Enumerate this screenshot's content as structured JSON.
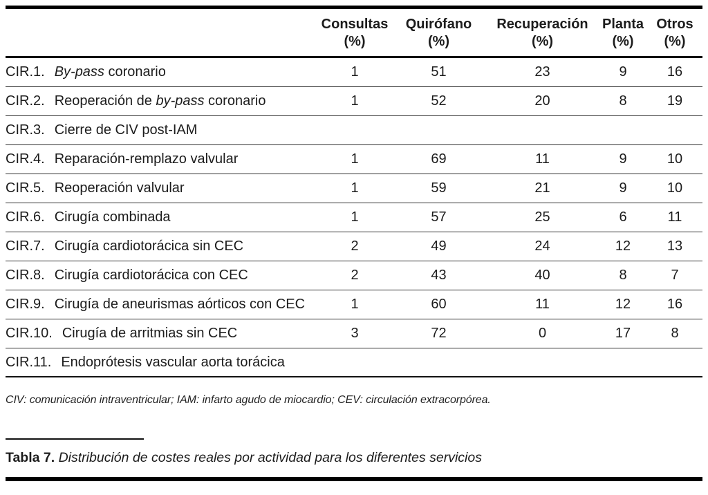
{
  "table": {
    "columns": [
      {
        "label": "Consultas",
        "unit": "(%)"
      },
      {
        "label": "Quirófano",
        "unit": "(%)"
      },
      {
        "label": "Recuperación",
        "unit": "(%)"
      },
      {
        "label": "Planta",
        "unit": "(%)"
      },
      {
        "label": "Otros",
        "unit": "(%)"
      }
    ],
    "rows": [
      {
        "code": "CIR.1.",
        "label_parts": [
          {
            "text": "By-pass",
            "italic": true
          },
          {
            "text": " coronario",
            "italic": false
          }
        ],
        "values": [
          "1",
          "51",
          "23",
          "9",
          "16"
        ]
      },
      {
        "code": "CIR.2.",
        "label_parts": [
          {
            "text": "Reoperación de ",
            "italic": false
          },
          {
            "text": "by-pass",
            "italic": true
          },
          {
            "text": " coronario",
            "italic": false
          }
        ],
        "values": [
          "1",
          "52",
          "20",
          "8",
          "19"
        ]
      },
      {
        "code": "CIR.3.",
        "label_parts": [
          {
            "text": "Cierre de CIV post-IAM",
            "italic": false
          }
        ],
        "values": [
          "",
          "",
          "",
          "",
          ""
        ]
      },
      {
        "code": "CIR.4.",
        "label_parts": [
          {
            "text": "Reparación-remplazo valvular",
            "italic": false
          }
        ],
        "values": [
          "1",
          "69",
          "11",
          "9",
          "10"
        ]
      },
      {
        "code": "CIR.5.",
        "label_parts": [
          {
            "text": "Reoperación valvular",
            "italic": false
          }
        ],
        "values": [
          "1",
          "59",
          "21",
          "9",
          "10"
        ]
      },
      {
        "code": "CIR.6.",
        "label_parts": [
          {
            "text": "Cirugía combinada",
            "italic": false
          }
        ],
        "values": [
          "1",
          "57",
          "25",
          "6",
          "11"
        ]
      },
      {
        "code": "CIR.7.",
        "label_parts": [
          {
            "text": "Cirugía cardiotorácica sin CEC",
            "italic": false
          }
        ],
        "values": [
          "2",
          "49",
          "24",
          "12",
          "13"
        ]
      },
      {
        "code": "CIR.8.",
        "label_parts": [
          {
            "text": "Cirugía cardiotorácica con CEC",
            "italic": false
          }
        ],
        "values": [
          "2",
          "43",
          "40",
          "8",
          "7"
        ]
      },
      {
        "code": "CIR.9.",
        "label_parts": [
          {
            "text": "Cirugía de aneurismas aórticos con CEC",
            "italic": false
          }
        ],
        "values": [
          "1",
          "60",
          "11",
          "12",
          "16"
        ]
      },
      {
        "code": "CIR.10.",
        "label_parts": [
          {
            "text": "Cirugía de arritmias sin CEC",
            "italic": false
          }
        ],
        "values": [
          "3",
          "72",
          "0",
          "17",
          "8"
        ]
      },
      {
        "code": "CIR.11.",
        "label_parts": [
          {
            "text": "Endoprótesis vascular aorta torácica",
            "italic": false
          }
        ],
        "values": [
          "",
          "",
          "",
          "",
          ""
        ]
      }
    ]
  },
  "footnote": "CIV: comunicación intraventricular; IAM: infarto agudo de miocardio; CEV: circulación extracorpórea.",
  "caption": {
    "label": "Tabla 7.",
    "text": " Distribución de costes reales por actividad para los diferentes servicios"
  }
}
